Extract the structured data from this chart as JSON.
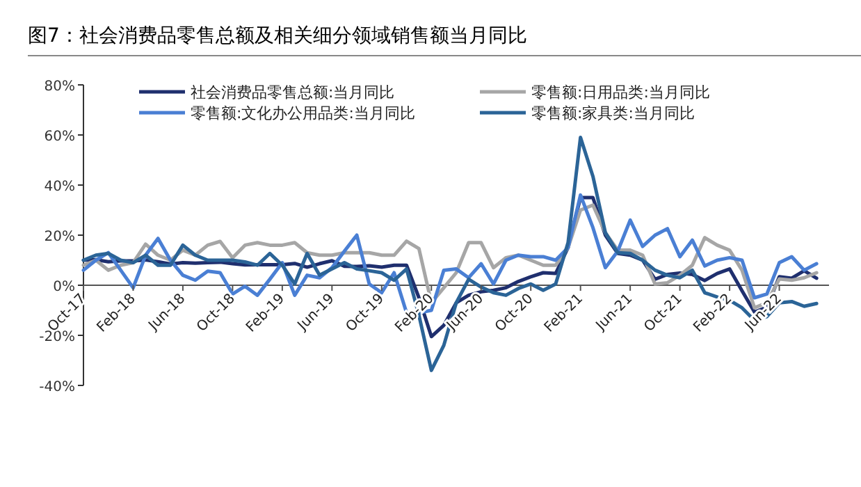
{
  "chart_data": {
    "type": "line",
    "title": "图7：社会消费品零售总额及相关细分领域销售额当月同比",
    "categories": [
      "Oct-17",
      null,
      null,
      null,
      "Feb-18",
      null,
      null,
      null,
      "Jun-18",
      null,
      null,
      null,
      "Oct-18",
      null,
      null,
      null,
      "Feb-19",
      null,
      null,
      null,
      "Jun-19",
      null,
      null,
      null,
      "Oct-19",
      null,
      null,
      null,
      "Feb-20",
      null,
      null,
      null,
      "Jun-20",
      null,
      null,
      null,
      "Oct-20",
      null,
      null,
      null,
      "Feb-21",
      null,
      null,
      null,
      "Jun-21",
      null,
      null,
      null,
      "Oct-21",
      null,
      null,
      null,
      "Feb-22",
      null,
      null,
      null,
      "Jun-22",
      null,
      null,
      null
    ],
    "series": [
      {
        "name": "社会消费品零售总额:当月同比",
        "color": "#1f2f6e",
        "values": [
          10.0,
          10.2,
          9.4,
          9.7,
          9.7,
          10.1,
          9.4,
          8.5,
          9.0,
          8.8,
          9.0,
          9.2,
          8.6,
          8.1,
          8.2,
          8.2,
          8.2,
          8.7,
          7.2,
          8.6,
          9.8,
          7.6,
          7.5,
          7.8,
          7.2,
          8.0,
          8.0,
          -5,
          -20.5,
          -16,
          -7,
          -4,
          -2.6,
          -2,
          -1,
          1.5,
          3.4,
          5,
          4.7,
          15,
          35,
          35,
          20,
          12.7,
          12,
          10,
          2.4,
          4.3,
          4.9,
          4.3,
          1.9,
          4.7,
          6.5,
          -2.2,
          -10.7,
          -8.8,
          3.4,
          2.8,
          5.8,
          2.8
        ]
      },
      {
        "name": "零售额:日用品类:当月同比",
        "color": "#a6a6a6",
        "values": [
          8,
          10,
          6,
          8,
          9,
          16.4,
          12,
          10,
          14,
          12,
          16,
          17.5,
          11,
          16,
          17,
          16,
          16,
          17,
          13,
          12,
          12,
          13,
          13,
          13,
          12,
          12,
          17.6,
          14.6,
          -7,
          -1,
          5,
          17,
          17,
          7,
          11,
          12,
          10,
          8,
          8,
          15,
          30,
          32,
          21,
          14,
          14,
          12,
          0.5,
          1,
          4,
          8,
          19,
          16,
          14,
          6,
          -9,
          -7,
          2.5,
          2,
          3,
          5
        ]
      },
      {
        "name": "零售额:文化办公用品类:当月同比",
        "color": "#4a7fd4",
        "values": [
          6,
          10,
          13,
          6,
          -1,
          12,
          18.7,
          10,
          4,
          2,
          5.6,
          5,
          -3.5,
          -0.4,
          -4,
          2.4,
          9,
          -4,
          4,
          3,
          7,
          13.6,
          20,
          0.5,
          -3,
          5,
          -11,
          -11,
          -10,
          6,
          6.5,
          3,
          8.6,
          0.5,
          10,
          12,
          11.4,
          11.4,
          10,
          15,
          36,
          23,
          7,
          13.6,
          26,
          15.5,
          20,
          22.6,
          11.4,
          18,
          7.7,
          10,
          11,
          10,
          -5,
          -3.5,
          9,
          11.4,
          6,
          8.6
        ]
      },
      {
        "name": "零售额:家具类:当月同比",
        "color": "#2b6497",
        "values": [
          10,
          12,
          12.7,
          10,
          9,
          12,
          8,
          8,
          16,
          12,
          10,
          10,
          10,
          9.3,
          8,
          12.7,
          8,
          0.5,
          12.7,
          4,
          6.5,
          9,
          6.5,
          5.8,
          5,
          2,
          6.5,
          -12,
          -34,
          -24,
          -7,
          2.4,
          -0.7,
          -3,
          -4,
          -1.3,
          0.5,
          -2,
          0.5,
          17,
          59,
          43.5,
          21,
          13,
          12.7,
          10,
          6,
          4,
          3,
          6,
          -3,
          -4.7,
          -6,
          -9,
          -14,
          -12.5,
          -7,
          -6.5,
          -8.4,
          -7.3
        ]
      }
    ],
    "ylim": [
      -40,
      80
    ],
    "yticks": [
      {
        "value": -40,
        "label": "-40%"
      },
      {
        "value": -20,
        "label": "-20%"
      },
      {
        "value": 0,
        "label": "0%"
      },
      {
        "value": 20,
        "label": "20%"
      },
      {
        "value": 40,
        "label": "40%"
      },
      {
        "value": 60,
        "label": "60%"
      },
      {
        "value": 80,
        "label": "80%"
      }
    ],
    "legend": "top"
  }
}
